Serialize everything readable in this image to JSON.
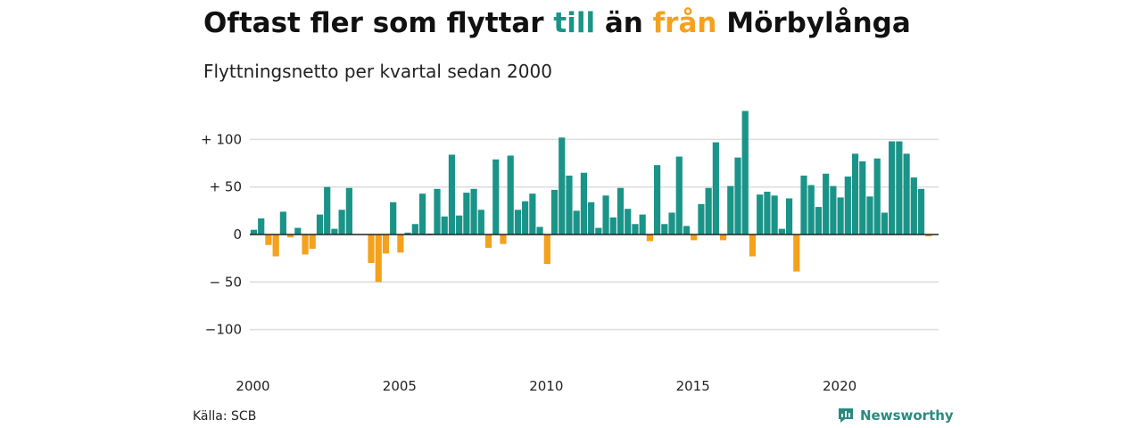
{
  "title": {
    "part1": "Oftast fler som flyttar ",
    "till": "till",
    "part2": " än ",
    "fran": "från",
    "part3": " Mörbylånga"
  },
  "subtitle": "Flyttningsnetto per kvartal sedan 2000",
  "source": "Källa: SCB",
  "brand": "Newsworthy",
  "colors": {
    "positive": "#1a9488",
    "negative": "#f4a11d",
    "grid": "#dddddd",
    "axis": "#222222",
    "brand": "#2a8a7f"
  },
  "chart_data": {
    "type": "bar",
    "ylim": [
      -120,
      130
    ],
    "y_ticks": [
      {
        "v": 100,
        "label": "+ 100"
      },
      {
        "v": 50,
        "label": "+  50"
      },
      {
        "v": 0,
        "label": "0"
      },
      {
        "v": -50,
        "label": "− 50"
      },
      {
        "v": -100,
        "label": "−100"
      }
    ],
    "x_ticks": [
      {
        "year": 2000,
        "label": "2000"
      },
      {
        "year": 2005,
        "label": "2005"
      },
      {
        "year": 2010,
        "label": "2010"
      },
      {
        "year": 2015,
        "label": "2015"
      },
      {
        "year": 2020,
        "label": "2020"
      }
    ],
    "start_year": 2000,
    "values": [
      5,
      17,
      -11,
      -23,
      24,
      -3,
      7,
      -21,
      -15,
      21,
      50,
      6,
      26,
      49,
      0,
      0,
      -30,
      -50,
      -20,
      34,
      -19,
      2,
      11,
      43,
      1,
      48,
      19,
      84,
      20,
      44,
      48,
      26,
      -14,
      79,
      -10,
      83,
      26,
      35,
      43,
      8,
      -31,
      47,
      102,
      62,
      25,
      65,
      34,
      7,
      41,
      18,
      49,
      27,
      11,
      21,
      -7,
      73,
      11,
      23,
      82,
      9,
      -6,
      32,
      49,
      97,
      -6,
      51,
      81,
      130,
      -23,
      42,
      45,
      41,
      6,
      38,
      -39,
      62,
      52,
      29,
      64,
      51,
      39,
      61,
      85,
      77,
      40,
      80,
      23,
      98,
      98,
      85,
      60,
      48,
      -2
    ]
  }
}
